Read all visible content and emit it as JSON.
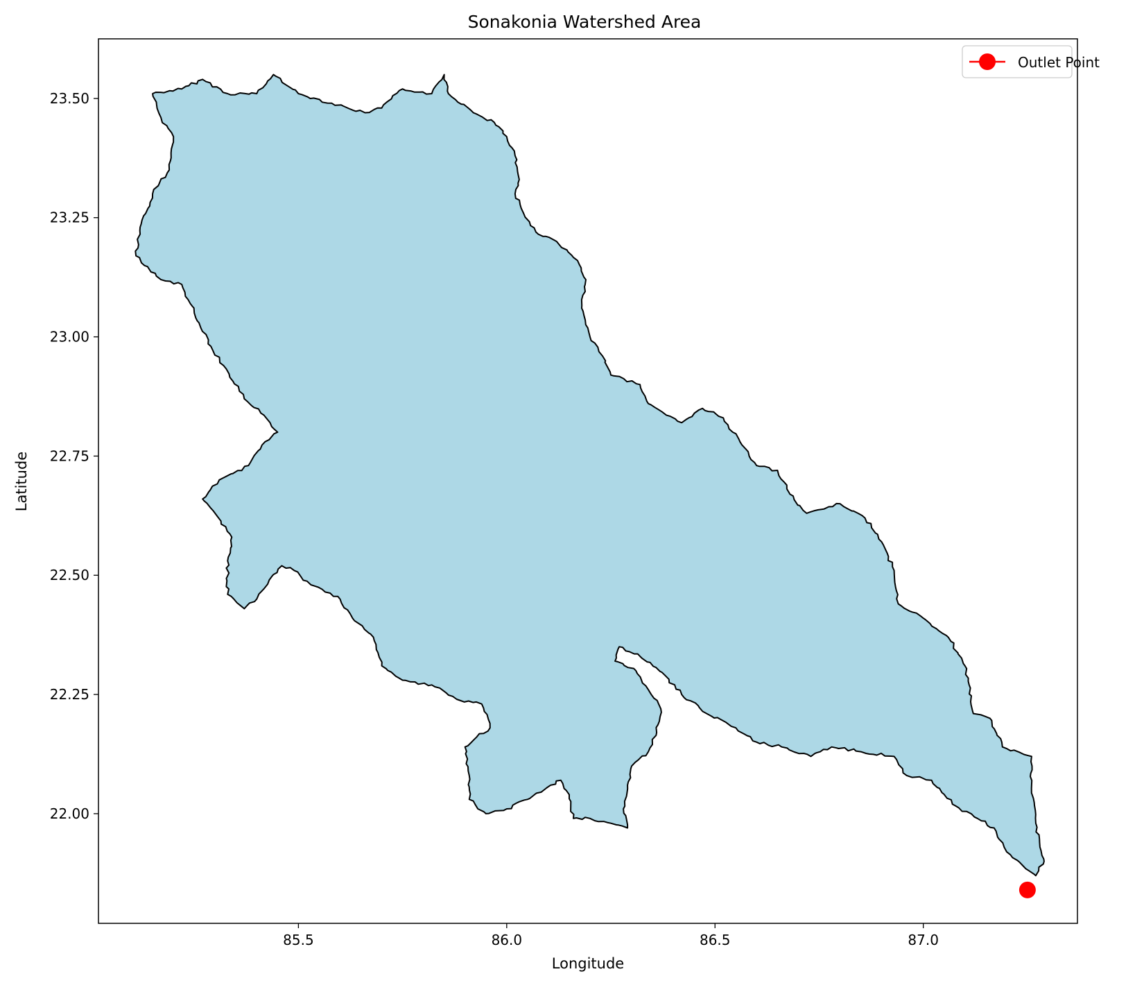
{
  "chart_data": {
    "type": "map",
    "title": "Sonakonia Watershed Area",
    "xlabel": "Longitude",
    "ylabel": "Latitude",
    "xlim": [
      85.02,
      87.37
    ],
    "ylim": [
      21.77,
      23.625
    ],
    "xticks": [
      85.5,
      86.0,
      86.5,
      87.0
    ],
    "xtick_labels": [
      "85.5",
      "86.0",
      "86.5",
      "87.0"
    ],
    "yticks": [
      22.0,
      22.25,
      22.5,
      22.75,
      23.0,
      23.25,
      23.5
    ],
    "ytick_labels": [
      "22.00",
      "22.25",
      "22.50",
      "22.75",
      "23.00",
      "23.25",
      "23.50"
    ],
    "grid": false,
    "legend": {
      "entries": [
        "Outlet Point"
      ],
      "placement": "top-right"
    },
    "watershed": {
      "fill_color": "#add8e6",
      "edge_color": "#000000",
      "boundary": [
        [
          85.15,
          23.51
        ],
        [
          85.22,
          23.52
        ],
        [
          85.27,
          23.54
        ],
        [
          85.33,
          23.51
        ],
        [
          85.4,
          23.51
        ],
        [
          85.44,
          23.55
        ],
        [
          85.5,
          23.51
        ],
        [
          85.58,
          23.49
        ],
        [
          85.66,
          23.47
        ],
        [
          85.7,
          23.48
        ],
        [
          85.75,
          23.52
        ],
        [
          85.82,
          23.51
        ],
        [
          85.85,
          23.55
        ],
        [
          85.86,
          23.51
        ],
        [
          85.92,
          23.47
        ],
        [
          85.97,
          23.45
        ],
        [
          86.0,
          23.42
        ],
        [
          86.02,
          23.38
        ],
        [
          86.03,
          23.33
        ],
        [
          86.02,
          23.3
        ],
        [
          86.04,
          23.26
        ],
        [
          86.07,
          23.22
        ],
        [
          86.12,
          23.2
        ],
        [
          86.17,
          23.16
        ],
        [
          86.19,
          23.12
        ],
        [
          86.18,
          23.06
        ],
        [
          86.2,
          23.0
        ],
        [
          86.23,
          22.96
        ],
        [
          86.25,
          22.92
        ],
        [
          86.32,
          22.9
        ],
        [
          86.34,
          22.86
        ],
        [
          86.42,
          22.82
        ],
        [
          86.47,
          22.85
        ],
        [
          86.52,
          22.83
        ],
        [
          86.56,
          22.78
        ],
        [
          86.6,
          22.73
        ],
        [
          86.65,
          22.72
        ],
        [
          86.68,
          22.67
        ],
        [
          86.72,
          22.63
        ],
        [
          86.8,
          22.65
        ],
        [
          86.86,
          22.62
        ],
        [
          86.9,
          22.57
        ],
        [
          86.93,
          22.51
        ],
        [
          86.94,
          22.44
        ],
        [
          87.0,
          22.41
        ],
        [
          87.06,
          22.37
        ],
        [
          87.1,
          22.31
        ],
        [
          87.11,
          22.27
        ],
        [
          87.12,
          22.21
        ],
        [
          87.16,
          22.2
        ],
        [
          87.19,
          22.14
        ],
        [
          87.26,
          22.12
        ],
        [
          87.26,
          22.06
        ],
        [
          87.27,
          21.98
        ],
        [
          87.28,
          21.93
        ],
        [
          87.29,
          21.9
        ],
        [
          87.27,
          21.87
        ],
        [
          87.24,
          21.89
        ],
        [
          87.2,
          21.92
        ],
        [
          87.17,
          21.97
        ],
        [
          87.13,
          21.99
        ],
        [
          87.07,
          22.02
        ],
        [
          87.02,
          22.07
        ],
        [
          86.96,
          22.08
        ],
        [
          86.93,
          22.12
        ],
        [
          86.85,
          22.13
        ],
        [
          86.78,
          22.14
        ],
        [
          86.73,
          22.12
        ],
        [
          86.66,
          22.14
        ],
        [
          86.6,
          22.15
        ],
        [
          86.55,
          22.18
        ],
        [
          86.48,
          22.21
        ],
        [
          86.42,
          22.25
        ],
        [
          86.38,
          22.29
        ],
        [
          86.32,
          22.33
        ],
        [
          86.27,
          22.35
        ],
        [
          86.26,
          22.32
        ],
        [
          86.31,
          22.3
        ],
        [
          86.34,
          22.26
        ],
        [
          86.37,
          22.22
        ],
        [
          86.36,
          22.17
        ],
        [
          86.34,
          22.13
        ],
        [
          86.3,
          22.1
        ],
        [
          86.29,
          22.06
        ],
        [
          86.28,
          22.01
        ],
        [
          86.29,
          21.97
        ],
        [
          86.25,
          21.98
        ],
        [
          86.2,
          21.99
        ],
        [
          86.16,
          21.99
        ],
        [
          86.15,
          22.04
        ],
        [
          86.13,
          22.07
        ],
        [
          86.09,
          22.05
        ],
        [
          86.05,
          22.03
        ],
        [
          86.0,
          22.01
        ],
        [
          85.95,
          22.0
        ],
        [
          85.91,
          22.03
        ],
        [
          85.91,
          22.08
        ],
        [
          85.9,
          22.14
        ],
        [
          85.96,
          22.18
        ],
        [
          85.94,
          22.23
        ],
        [
          85.88,
          22.24
        ],
        [
          85.82,
          22.27
        ],
        [
          85.75,
          22.28
        ],
        [
          85.7,
          22.31
        ],
        [
          85.68,
          22.37
        ],
        [
          85.63,
          22.41
        ],
        [
          85.6,
          22.45
        ],
        [
          85.53,
          22.48
        ],
        [
          85.49,
          22.51
        ],
        [
          85.46,
          22.52
        ],
        [
          85.43,
          22.49
        ],
        [
          85.4,
          22.45
        ],
        [
          85.37,
          22.43
        ],
        [
          85.33,
          22.46
        ],
        [
          85.33,
          22.53
        ],
        [
          85.34,
          22.58
        ],
        [
          85.3,
          22.63
        ],
        [
          85.27,
          22.66
        ],
        [
          85.31,
          22.7
        ],
        [
          85.38,
          22.73
        ],
        [
          85.42,
          22.78
        ],
        [
          85.45,
          22.8
        ],
        [
          85.41,
          22.84
        ],
        [
          85.37,
          22.87
        ],
        [
          85.32,
          22.94
        ],
        [
          85.29,
          22.98
        ],
        [
          85.25,
          23.05
        ],
        [
          85.22,
          23.11
        ],
        [
          85.17,
          23.12
        ],
        [
          85.11,
          23.17
        ],
        [
          85.12,
          23.23
        ],
        [
          85.15,
          23.3
        ],
        [
          85.19,
          23.35
        ],
        [
          85.2,
          23.42
        ],
        [
          85.17,
          23.46
        ]
      ]
    },
    "outlet_point": {
      "name": "Outlet Point",
      "lon": 87.25,
      "lat": 21.84,
      "color": "#ff0000"
    }
  }
}
